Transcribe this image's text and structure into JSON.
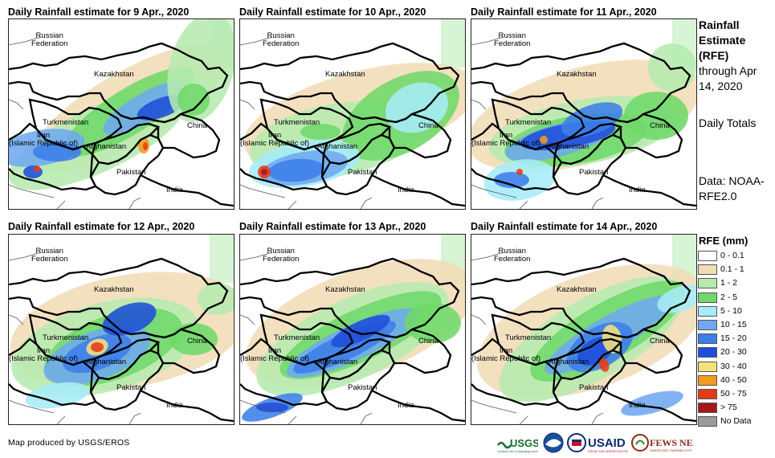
{
  "panels": [
    {
      "title": "Daily Rainfall estimate for 9 Apr., 2020"
    },
    {
      "title": "Daily Rainfall estimate for 10 Apr., 2020"
    },
    {
      "title": "Daily Rainfall estimate for 11 Apr., 2020"
    },
    {
      "title": "Daily Rainfall estimate for 12 Apr., 2020"
    },
    {
      "title": "Daily Rainfall estimate for 13 Apr., 2020"
    },
    {
      "title": "Daily Rainfall estimate for 14 Apr., 2020"
    }
  ],
  "map_labels": {
    "russia": "Russian\nFederation",
    "kazakhstan": "Kazakhstan",
    "turkmenistan": "Turkmenistan",
    "iran": "Iran\n(Islamic Republic of)",
    "afghanistan": "Afghanistan",
    "pakistan": "Pakistan",
    "china": "China",
    "india": "India"
  },
  "side": {
    "title_bold": "Rainfall Estimate (RFE)",
    "through": "through Apr 14, 2020",
    "daily": "Daily Totals",
    "data_source": "Data: NOAA-RFE2.0"
  },
  "legend": {
    "title": "RFE (mm)",
    "items": [
      {
        "label": "0 - 0.1",
        "color": "#ffffff"
      },
      {
        "label": "0.1 - 1",
        "color": "#f1dcb6"
      },
      {
        "label": "1 - 2",
        "color": "#b6ebb0"
      },
      {
        "label": "2 - 5",
        "color": "#6fd86a"
      },
      {
        "label": "5 - 10",
        "color": "#a6ecf8"
      },
      {
        "label": "10 - 15",
        "color": "#6fa8f0"
      },
      {
        "label": "15 - 20",
        "color": "#3c7ee8"
      },
      {
        "label": "20 - 30",
        "color": "#1e4fd8"
      },
      {
        "label": "30 - 40",
        "color": "#f6e07a"
      },
      {
        "label": "40 - 50",
        "color": "#f39c1e"
      },
      {
        "label": "50 - 75",
        "color": "#e63a17"
      },
      {
        "label": "> 75",
        "color": "#a51818"
      },
      {
        "label": "No Data",
        "color": "#9a9a9a"
      }
    ]
  },
  "credit": "Map produced by USGS/EROS",
  "logos": [
    {
      "name": "usgs-logo",
      "text": "≈USGS"
    },
    {
      "name": "noaa-logo",
      "text": "NOAA"
    },
    {
      "name": "usaid-seal",
      "text": "USAID"
    },
    {
      "name": "usaid-logo",
      "text": "USAID"
    },
    {
      "name": "fewsnet-logo",
      "text": "FEWS NET"
    }
  ]
}
